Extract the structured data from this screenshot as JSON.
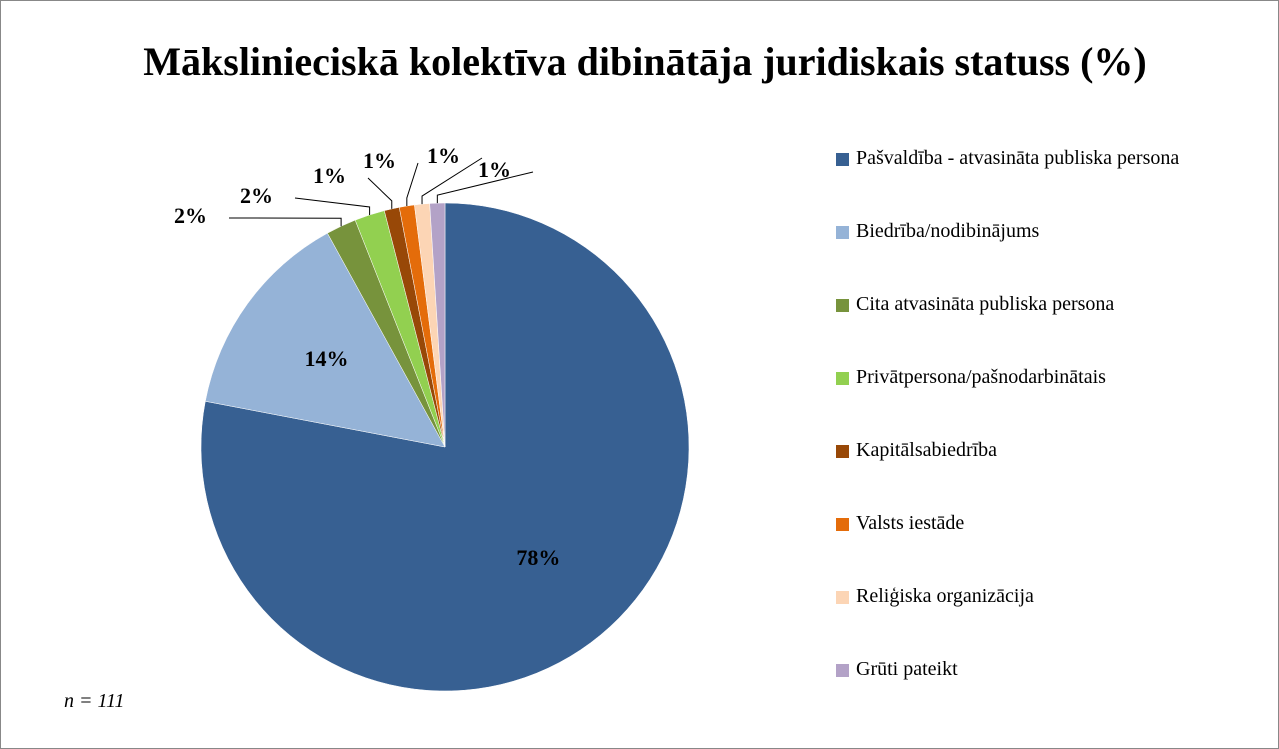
{
  "chart_data": {
    "type": "pie",
    "title": "Mākslinieciskā kolektīva dibinātāja juridiskais statuss (%)",
    "annotation": "n = 111",
    "categories": [
      "Pašvaldība - atvasināta publiska persona",
      "Biedrība/nodibinājums",
      "Cita atvasināta publiska persona",
      "Privātpersona/pašnodarbinātais",
      "Kapitālsabiedrība",
      "Valsts iestāde",
      "Reliģiska organizācija",
      "Grūti pateikt"
    ],
    "values": [
      78,
      14,
      2,
      2,
      1,
      1,
      1,
      1
    ],
    "value_labels": [
      "78%",
      "14%",
      "2%",
      "2%",
      "1%",
      "1%",
      "1%",
      "1%"
    ],
    "colors": [
      "#376092",
      "#95b3d7",
      "#77933c",
      "#92d050",
      "#984807",
      "#e46c0a",
      "#fcd5b5",
      "#b3a2c7"
    ],
    "legend": "right"
  }
}
